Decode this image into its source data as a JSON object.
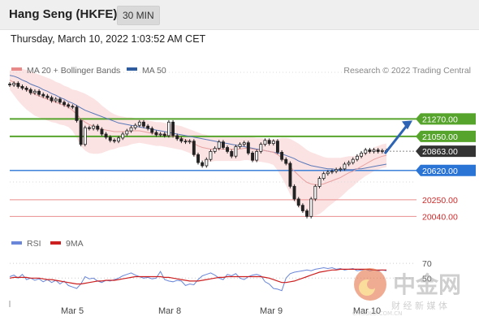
{
  "header": {
    "title": "Hang Seng (HKFE)",
    "interval": "30 MIN",
    "timestamp": "Thursday, March 10, 2022 1:03:52 AM CET"
  },
  "legend_main": [
    {
      "label": "MA 20 + Bollinger Bands",
      "color": "#e88a8a"
    },
    {
      "label": "MA 50",
      "color": "#2e5c9e"
    }
  ],
  "credit": "Research © 2022 Trading Central",
  "legend_rsi": [
    {
      "label": "RSI",
      "color": "#6a86d8"
    },
    {
      "label": "9MA",
      "color": "#cc1f1f"
    }
  ],
  "watermark": {
    "text": "中金网",
    "sub": "财 经 新 媒 体",
    "url": "CNGOLD.COM.CN"
  },
  "chart_data": {
    "type": "candlestick",
    "x_labels": [
      "Mar 5",
      "Mar 8",
      "Mar 9",
      "Mar 10"
    ],
    "y_range": [
      19900,
      21900
    ],
    "levels": [
      {
        "value": 21270,
        "label": "21270.00",
        "kind": "resistance",
        "color": "#57a42d"
      },
      {
        "value": 21050,
        "label": "21050.00",
        "kind": "resistance",
        "color": "#57a42d"
      },
      {
        "value": 20863,
        "label": "20863.00",
        "kind": "last",
        "color": "#333333"
      },
      {
        "value": 20620,
        "label": "20620.00",
        "kind": "pivot",
        "color": "#2a74d6"
      },
      {
        "value": 20250,
        "label": "20250.00",
        "kind": "support",
        "color": "#e98e8e"
      },
      {
        "value": 20040,
        "label": "20040.00",
        "kind": "support",
        "color": "#e98e8e"
      }
    ],
    "close": [
      21700,
      21720,
      21680,
      21660,
      21640,
      21600,
      21620,
      21580,
      21560,
      21540,
      21500,
      21520,
      21480,
      21450,
      21430,
      21420,
      21250,
      20950,
      21160,
      21150,
      21180,
      21140,
      21080,
      21040,
      21000,
      20990,
      21030,
      21080,
      21120,
      21160,
      21190,
      21230,
      21180,
      21150,
      21100,
      21070,
      21080,
      21060,
      21230,
      21060,
      21020,
      20990,
      20980,
      20990,
      20820,
      20720,
      20680,
      20760,
      20860,
      20900,
      20980,
      20910,
      20860,
      20800,
      20920,
      20950,
      20970,
      20840,
      20750,
      20860,
      20950,
      21000,
      20960,
      20990,
      20850,
      20760,
      20710,
      20420,
      20260,
      20180,
      20110,
      20040,
      20260,
      20420,
      20520,
      20580,
      20600,
      20610,
      20630,
      20640,
      20700,
      20720,
      20760,
      20800,
      20840,
      20880,
      20860,
      20880,
      20860,
      20870,
      20863
    ],
    "ma20": [
      21760,
      21730,
      21700,
      21670,
      21640,
      21610,
      21580,
      21560,
      21540,
      21520,
      21500,
      21480,
      21460,
      21440,
      21420,
      21380,
      21330,
      21270,
      21230,
      21200,
      21180,
      21160,
      21140,
      21130,
      21120,
      21110,
      21110,
      21110,
      21110,
      21120,
      21120,
      21120,
      21110,
      21100,
      21090,
      21080,
      21080,
      21070,
      21060,
      21050,
      21040,
      21030,
      21010,
      20990,
      20960,
      20930,
      20910,
      20900,
      20890,
      20890,
      20890,
      20890,
      20890,
      20890,
      20890,
      20890,
      20900,
      20900,
      20890,
      20880,
      20880,
      20870,
      20860,
      20850,
      20820,
      20780,
      20730,
      20670,
      20610,
      20560,
      20510,
      20470,
      20450,
      20440,
      20440,
      20450,
      20470,
      20490,
      20510,
      20530,
      20560,
      20590,
      20610,
      20640,
      20670,
      20700,
      20730,
      20760,
      20780,
      20800,
      20810
    ],
    "ma50": [
      21820,
      21810,
      21790,
      21760,
      21740,
      21710,
      21690,
      21670,
      21640,
      21620,
      21590,
      21570,
      21540,
      21520,
      21490,
      21470,
      21440,
      21410,
      21380,
      21360,
      21340,
      21320,
      21300,
      21280,
      21260,
      21240,
      21220,
      21210,
      21200,
      21190,
      21180,
      21170,
      21160,
      21150,
      21140,
      21130,
      21120,
      21110,
      21100,
      21090,
      21080,
      21070,
      21060,
      21050,
      21040,
      21030,
      21020,
      21010,
      21000,
      20990,
      20980,
      20970,
      20960,
      20950,
      20940,
      20930,
      20920,
      20910,
      20900,
      20890,
      20880,
      20870,
      20860,
      20850,
      20840,
      20830,
      20810,
      20790,
      20770,
      20740,
      20720,
      20700,
      20680,
      20670,
      20660,
      20650,
      20640,
      20640,
      20630,
      20630,
      20630,
      20630,
      20630,
      20640,
      20640,
      20650,
      20660,
      20670,
      20680,
      20690,
      20700
    ],
    "bb_width": [
      120,
      160,
      200,
      230,
      250,
      260,
      270,
      270,
      270,
      270,
      270,
      260,
      260,
      250,
      250,
      260,
      300,
      340,
      360,
      360,
      350,
      330,
      300,
      270,
      240,
      220,
      200,
      190,
      180,
      170,
      160,
      150,
      150,
      150,
      150,
      150,
      150,
      150,
      150,
      150,
      150,
      150,
      150,
      150,
      160,
      170,
      170,
      170,
      160,
      150,
      150,
      150,
      150,
      150,
      150,
      150,
      150,
      150,
      150,
      150,
      150,
      150,
      150,
      160,
      200,
      250,
      300,
      350,
      380,
      400,
      410,
      410,
      400,
      390,
      370,
      340,
      310,
      290,
      270,
      250,
      230,
      210,
      190,
      170,
      160,
      150,
      150,
      150,
      150,
      150,
      150
    ],
    "forecast": {
      "from": 20863,
      "to": 21270
    },
    "rsi": {
      "ticks": [
        70,
        50
      ],
      "rsi": [
        52,
        54,
        50,
        55,
        48,
        50,
        47,
        49,
        45,
        48,
        44,
        47,
        42,
        46,
        40,
        38,
        36,
        42,
        52,
        49,
        50,
        46,
        44,
        47,
        46,
        48,
        50,
        53,
        55,
        57,
        54,
        52,
        50,
        51,
        49,
        50,
        59,
        48,
        46,
        45,
        47,
        46,
        40,
        42,
        41,
        48,
        53,
        55,
        57,
        54,
        50,
        48,
        55,
        53,
        56,
        50,
        48,
        52,
        54,
        55,
        53,
        45,
        42,
        36,
        35,
        33,
        50,
        56,
        58,
        59,
        60,
        61,
        60,
        62,
        63,
        64,
        63,
        64,
        62,
        63,
        61,
        62,
        63,
        60,
        61,
        62,
        60,
        61,
        60,
        61,
        60
      ],
      "ma9": [
        50,
        51,
        51,
        51,
        51,
        50,
        50,
        50,
        49,
        48,
        48,
        47,
        46,
        45,
        44,
        43,
        42,
        42,
        43,
        44,
        45,
        46,
        46,
        47,
        47,
        47,
        48,
        49,
        50,
        51,
        52,
        52,
        52,
        52,
        52,
        52,
        52,
        51,
        51,
        50,
        49,
        48,
        47,
        46,
        46,
        46,
        47,
        48,
        49,
        50,
        51,
        51,
        52,
        52,
        52,
        52,
        52,
        52,
        52,
        52,
        52,
        51,
        50,
        48,
        46,
        44,
        44,
        45,
        46,
        48,
        50,
        52,
        54,
        56,
        58,
        59,
        60,
        61,
        61,
        62,
        62,
        62,
        62,
        62,
        62,
        62,
        62,
        61,
        61,
        61,
        61
      ]
    }
  }
}
